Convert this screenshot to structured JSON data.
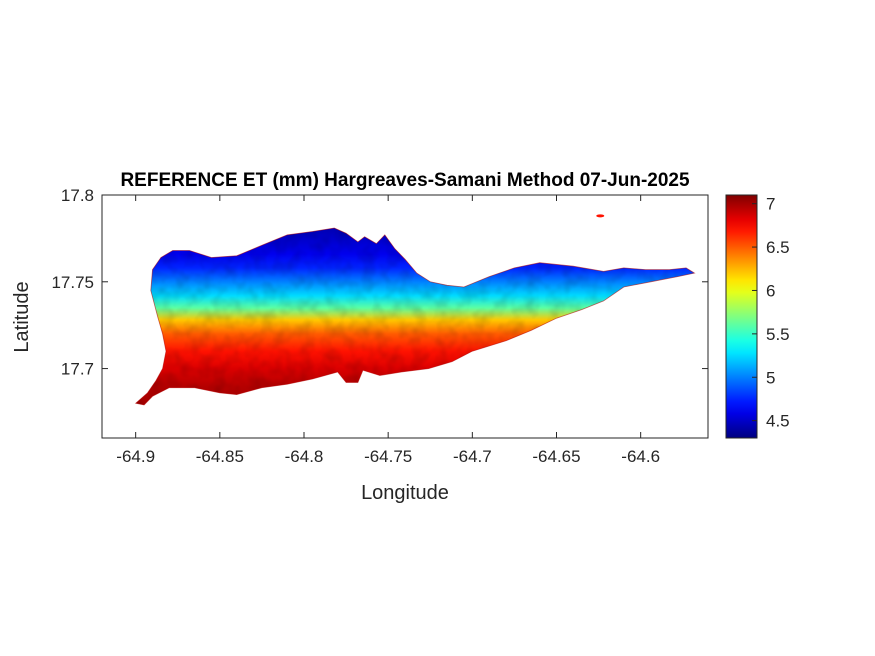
{
  "chart_data": {
    "type": "heatmap",
    "title": "REFERENCE ET (mm) Hargreaves-Samani Method  07-Jun-2025",
    "xlabel": "Longitude",
    "ylabel": "Latitude",
    "xlim": [
      -64.92,
      -64.56
    ],
    "ylim": [
      17.66,
      17.8
    ],
    "xticks": [
      -64.9,
      -64.85,
      -64.8,
      -64.75,
      -64.7,
      -64.65,
      -64.6
    ],
    "xtick_labels": [
      "-64.9",
      "-64.85",
      "-64.8",
      "-64.75",
      "-64.7",
      "-64.65",
      "-64.6"
    ],
    "yticks": [
      17.7,
      17.75,
      17.8
    ],
    "ytick_labels": [
      "17.7",
      "17.75",
      "17.8"
    ],
    "colormap": "jet",
    "colorbar": {
      "range": [
        4.3,
        7.1
      ],
      "ticks": [
        4.5,
        5,
        5.5,
        6,
        6.5,
        7
      ],
      "tick_labels": [
        "4.5",
        "5",
        "5.5",
        "6",
        "6.5",
        "7"
      ]
    },
    "island_outline": [
      [
        -64.9,
        17.68
      ],
      [
        -64.893,
        17.686
      ],
      [
        -64.888,
        17.693
      ],
      [
        -64.884,
        17.7
      ],
      [
        -64.882,
        17.71
      ],
      [
        -64.884,
        17.72
      ],
      [
        -64.887,
        17.73
      ],
      [
        -64.891,
        17.745
      ],
      [
        -64.89,
        17.757
      ],
      [
        -64.885,
        17.764
      ],
      [
        -64.878,
        17.768
      ],
      [
        -64.868,
        17.768
      ],
      [
        -64.855,
        17.764
      ],
      [
        -64.84,
        17.765
      ],
      [
        -64.825,
        17.771
      ],
      [
        -64.81,
        17.777
      ],
      [
        -64.795,
        17.779
      ],
      [
        -64.782,
        17.781
      ],
      [
        -64.775,
        17.778
      ],
      [
        -64.768,
        17.773
      ],
      [
        -64.764,
        17.776
      ],
      [
        -64.757,
        17.772
      ],
      [
        -64.752,
        17.777
      ],
      [
        -64.746,
        17.769
      ],
      [
        -64.74,
        17.763
      ],
      [
        -64.733,
        17.755
      ],
      [
        -64.725,
        17.75
      ],
      [
        -64.715,
        17.748
      ],
      [
        -64.705,
        17.747
      ],
      [
        -64.69,
        17.753
      ],
      [
        -64.675,
        17.758
      ],
      [
        -64.66,
        17.761
      ],
      [
        -64.64,
        17.759
      ],
      [
        -64.622,
        17.756
      ],
      [
        -64.61,
        17.758
      ],
      [
        -64.597,
        17.757
      ],
      [
        -64.583,
        17.757
      ],
      [
        -64.573,
        17.758
      ],
      [
        -64.568,
        17.755
      ],
      [
        -64.578,
        17.753
      ],
      [
        -64.594,
        17.75
      ],
      [
        -64.61,
        17.747
      ],
      [
        -64.622,
        17.739
      ],
      [
        -64.635,
        17.734
      ],
      [
        -64.65,
        17.729
      ],
      [
        -64.665,
        17.722
      ],
      [
        -64.68,
        17.716
      ],
      [
        -64.7,
        17.71
      ],
      [
        -64.712,
        17.704
      ],
      [
        -64.726,
        17.7
      ],
      [
        -64.742,
        17.698
      ],
      [
        -64.755,
        17.696
      ],
      [
        -64.765,
        17.699
      ],
      [
        -64.768,
        17.692
      ],
      [
        -64.775,
        17.692
      ],
      [
        -64.78,
        17.698
      ],
      [
        -64.795,
        17.694
      ],
      [
        -64.81,
        17.691
      ],
      [
        -64.825,
        17.689
      ],
      [
        -64.84,
        17.685
      ],
      [
        -64.85,
        17.686
      ],
      [
        -64.865,
        17.689
      ],
      [
        -64.88,
        17.689
      ],
      [
        -64.89,
        17.684
      ],
      [
        -64.895,
        17.679
      ]
    ],
    "islet": {
      "lon": -64.624,
      "lat": 17.788,
      "value": 6.7
    },
    "value_by_latitude": [
      {
        "lat": 17.68,
        "value": 7.0
      },
      {
        "lat": 17.69,
        "value": 6.95
      },
      {
        "lat": 17.7,
        "value": 6.85
      },
      {
        "lat": 17.71,
        "value": 6.7
      },
      {
        "lat": 17.72,
        "value": 6.5
      },
      {
        "lat": 17.728,
        "value": 6.2
      },
      {
        "lat": 17.735,
        "value": 5.6
      },
      {
        "lat": 17.742,
        "value": 5.25
      },
      {
        "lat": 17.75,
        "value": 5.0
      },
      {
        "lat": 17.758,
        "value": 4.75
      },
      {
        "lat": 17.766,
        "value": 4.6
      },
      {
        "lat": 17.78,
        "value": 4.45
      }
    ]
  }
}
